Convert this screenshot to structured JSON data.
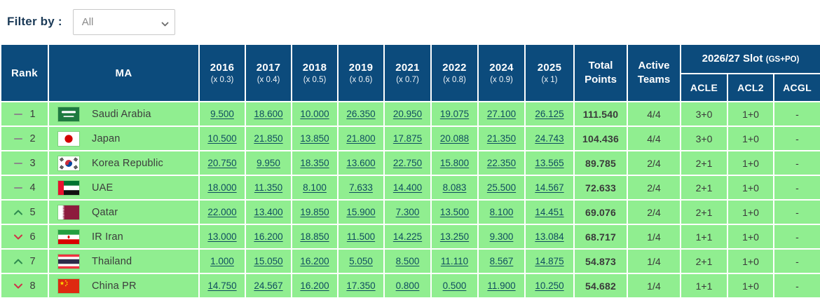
{
  "filter": {
    "label": "Filter by :",
    "value": "All"
  },
  "colors": {
    "header_bg": "#0c4b7c",
    "row_bg": "#90ee90",
    "link": "#0f4d5f",
    "up_arrow": "#2e8b4f",
    "down_arrow": "#cf3347",
    "no_change_dash": "#8a8a8a"
  },
  "table": {
    "headers": {
      "rank": "Rank",
      "ma": "MA",
      "total": "Total Points",
      "active": "Active Teams",
      "slot": "2026/27 Slot",
      "slot_suffix": "(GS+PO)",
      "slot_cols": [
        "ACLE",
        "ACL2",
        "ACGL"
      ]
    },
    "years": [
      {
        "year": "2016",
        "mult": "(x 0.3)"
      },
      {
        "year": "2017",
        "mult": "(x 0.4)"
      },
      {
        "year": "2018",
        "mult": "(x 0.5)"
      },
      {
        "year": "2019",
        "mult": "(x 0.6)"
      },
      {
        "year": "2021",
        "mult": "(x 0.7)"
      },
      {
        "year": "2022",
        "mult": "(x 0.8)"
      },
      {
        "year": "2024",
        "mult": "(x 0.9)"
      },
      {
        "year": "2025",
        "mult": "(x 1)"
      }
    ],
    "rows": [
      {
        "rank": "1",
        "change": "same",
        "country": "Saudi Arabia",
        "flag": "sa",
        "scores": [
          "9.500",
          "18.600",
          "10.000",
          "26.350",
          "20.950",
          "19.075",
          "27.100",
          "26.125"
        ],
        "total": "111.540",
        "active": "4/4",
        "slots": [
          "3+0",
          "1+0",
          "-"
        ]
      },
      {
        "rank": "2",
        "change": "same",
        "country": "Japan",
        "flag": "jp",
        "scores": [
          "10.500",
          "21.850",
          "13.850",
          "21.800",
          "17.875",
          "20.088",
          "21.350",
          "24.743"
        ],
        "total": "104.436",
        "active": "4/4",
        "slots": [
          "3+0",
          "1+0",
          "-"
        ]
      },
      {
        "rank": "3",
        "change": "same",
        "country": "Korea Republic",
        "flag": "kr",
        "scores": [
          "20.750",
          "9.950",
          "18.350",
          "13.600",
          "22.750",
          "15.800",
          "22.350",
          "13.565"
        ],
        "total": "89.785",
        "active": "2/4",
        "slots": [
          "2+1",
          "1+0",
          "-"
        ]
      },
      {
        "rank": "4",
        "change": "same",
        "country": "UAE",
        "flag": "ae",
        "scores": [
          "18.000",
          "11.350",
          "8.100",
          "7.633",
          "14.400",
          "8.083",
          "25.500",
          "14.567"
        ],
        "total": "72.633",
        "active": "2/4",
        "slots": [
          "2+1",
          "1+0",
          "-"
        ]
      },
      {
        "rank": "5",
        "change": "up",
        "country": "Qatar",
        "flag": "qa",
        "scores": [
          "22.000",
          "13.400",
          "19.850",
          "15.900",
          "7.300",
          "13.500",
          "8.100",
          "14.451"
        ],
        "total": "69.076",
        "active": "2/4",
        "slots": [
          "2+1",
          "1+0",
          "-"
        ]
      },
      {
        "rank": "6",
        "change": "down",
        "country": "IR Iran",
        "flag": "ir",
        "scores": [
          "13.000",
          "16.200",
          "18.850",
          "11.500",
          "14.225",
          "13.250",
          "9.300",
          "13.084"
        ],
        "total": "68.717",
        "active": "1/4",
        "slots": [
          "1+1",
          "1+0",
          "-"
        ]
      },
      {
        "rank": "7",
        "change": "up",
        "country": "Thailand",
        "flag": "th",
        "scores": [
          "1.000",
          "15.050",
          "16.200",
          "5.050",
          "8.500",
          "11.110",
          "8.567",
          "14.875"
        ],
        "total": "54.873",
        "active": "1/4",
        "slots": [
          "2+1",
          "1+0",
          "-"
        ]
      },
      {
        "rank": "8",
        "change": "down",
        "country": "China PR",
        "flag": "cn",
        "scores": [
          "14.750",
          "24.567",
          "16.200",
          "17.350",
          "0.800",
          "0.500",
          "11.900",
          "10.250"
        ],
        "total": "54.682",
        "active": "1/4",
        "slots": [
          "1+1",
          "1+0",
          "-"
        ]
      }
    ]
  }
}
